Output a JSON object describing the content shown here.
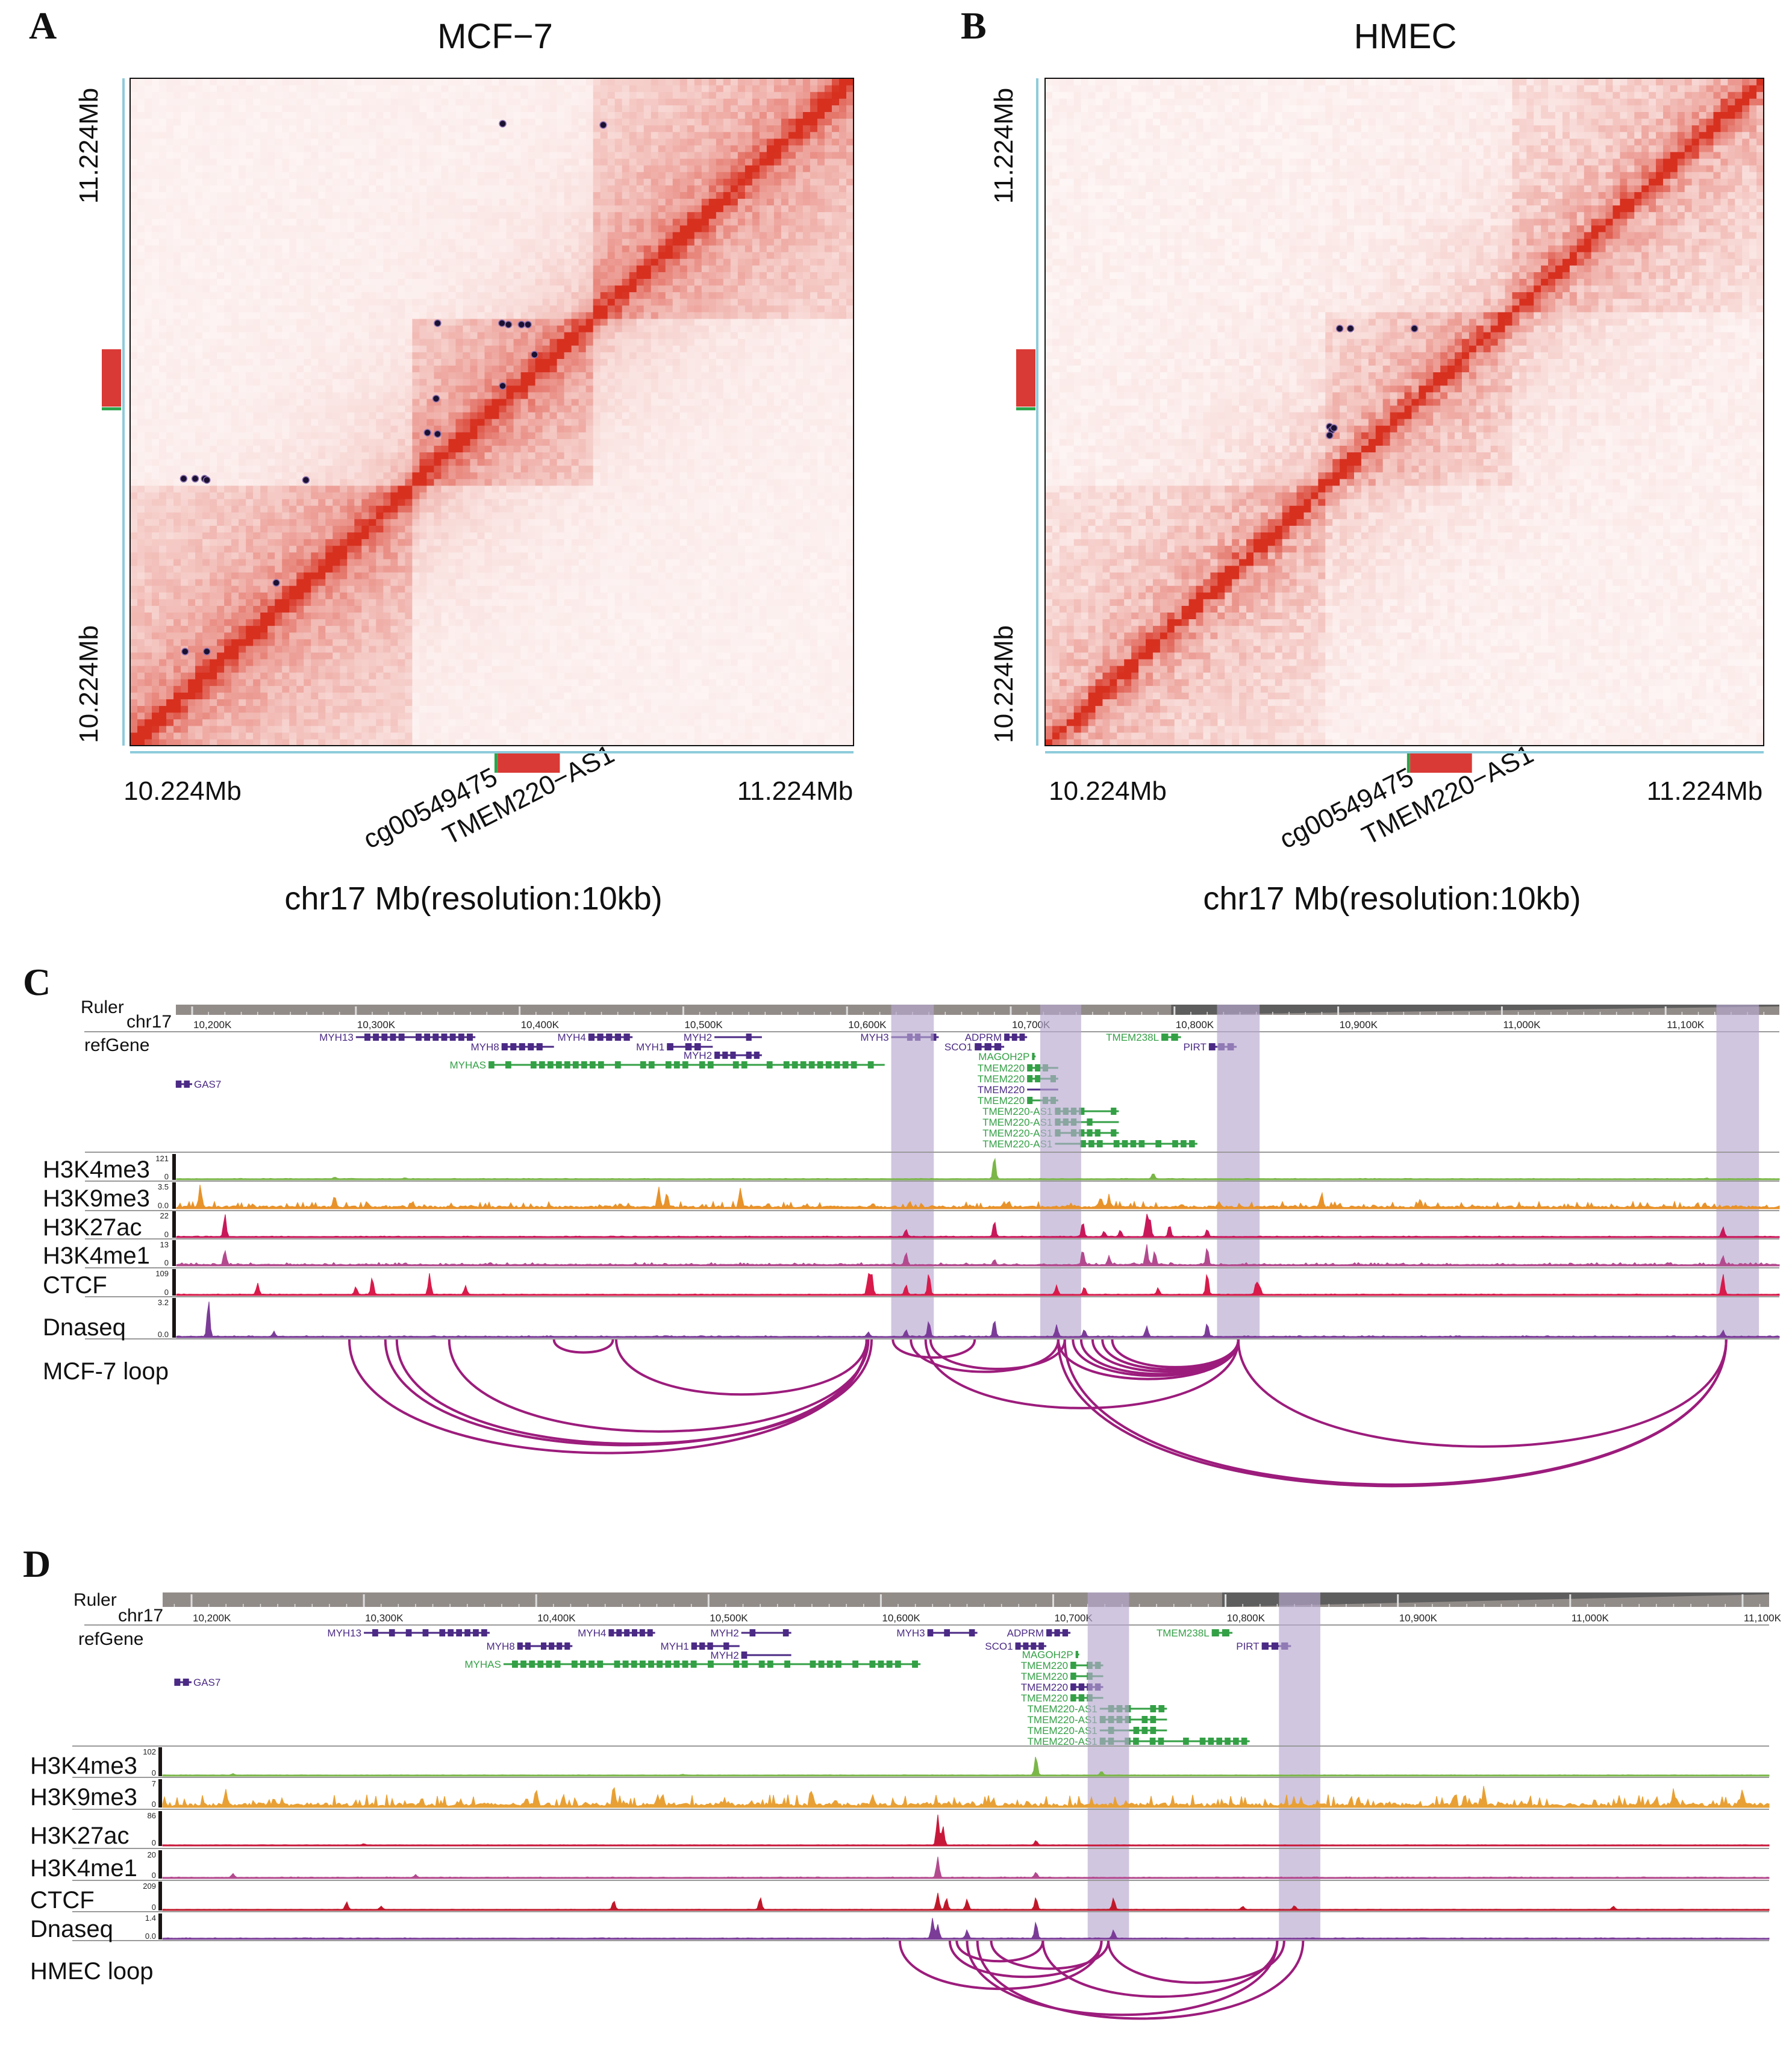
{
  "panels": {
    "A": {
      "label": "A",
      "title": "MCF−7",
      "xlabel": "chr17 Mb(resolution:10kb)",
      "start_label": "10.224Mb",
      "end_label": "11.224Mb",
      "y_top_label": "11.224Mb",
      "y_bottom_label": "10.224Mb",
      "marker_cpg": "cg00549475",
      "marker_gene": "TMEM220−AS1"
    },
    "B": {
      "label": "B",
      "title": "HMEC",
      "xlabel": "chr17 Mb(resolution:10kb)",
      "start_label": "10.224Mb",
      "end_label": "11.224Mb",
      "y_top_label": "11.224Mb",
      "y_bottom_label": "10.224Mb",
      "marker_cpg": "cg00549475",
      "marker_gene": "TMEM220−AS1"
    },
    "C": {
      "label": "C",
      "ruler": "Ruler",
      "chrom": "chr17",
      "refgene": "refGene",
      "loop_label": "MCF-7 loop"
    },
    "D": {
      "label": "D",
      "ruler": "Ruler",
      "chrom": "chr17",
      "refgene": "refGene",
      "loop_label": "HMEC loop"
    }
  },
  "colors": {
    "heat": "#d7301f",
    "dot": "#1a1030",
    "axis": "#8ecbdb",
    "marker": "#d93a35",
    "cpg": "#2aa34a",
    "loop": "#9c1c7c",
    "band": "#b7a8cf",
    "gene_purple": "#4b2a85",
    "gene_green": "#34a046"
  },
  "chart_data": [
    {
      "type": "heatmap",
      "panel": "A",
      "title": "MCF−7",
      "xlabel": "chr17 Mb(resolution:10kb)",
      "range_mb": [
        10.224,
        11.224
      ],
      "bins": 100,
      "resolution_kb": 10,
      "tad_boundaries_mb": [
        10.61,
        10.86
      ],
      "tad_boost": 0.22,
      "noise": 0.55,
      "marker_region_mb": [
        10.732,
        10.818
      ],
      "cpg_mb": 10.731,
      "loops_mb": [
        [
          10.739,
          11.156
        ],
        [
          10.878,
          11.154
        ],
        [
          10.649,
          10.857
        ],
        [
          10.738,
          10.857
        ],
        [
          10.747,
          10.855
        ],
        [
          10.765,
          10.855
        ],
        [
          10.774,
          10.855
        ],
        [
          10.783,
          10.81
        ],
        [
          10.647,
          10.744
        ],
        [
          10.739,
          10.763
        ],
        [
          10.635,
          10.693
        ],
        [
          10.649,
          10.691
        ],
        [
          10.298,
          10.624
        ],
        [
          10.314,
          10.624
        ],
        [
          10.327,
          10.624
        ],
        [
          10.33,
          10.622
        ],
        [
          10.467,
          10.622
        ],
        [
          10.426,
          10.468
        ],
        [
          10.3,
          10.365
        ],
        [
          10.33,
          10.365
        ]
      ]
    },
    {
      "type": "heatmap",
      "panel": "B",
      "title": "HMEC",
      "xlabel": "chr17 Mb(resolution:10kb)",
      "range_mb": [
        10.224,
        11.224
      ],
      "bins": 100,
      "resolution_kb": 10,
      "tad_boundaries_mb": [
        10.61,
        10.87
      ],
      "tad_boost": 0.12,
      "noise": 0.8,
      "marker_region_mb": [
        10.732,
        10.818
      ],
      "cpg_mb": 10.731,
      "loops_mb": [
        [
          10.634,
          10.849
        ],
        [
          10.649,
          10.849
        ],
        [
          10.738,
          10.849
        ],
        [
          10.62,
          10.702
        ],
        [
          10.623,
          10.697
        ],
        [
          10.62,
          10.689
        ],
        [
          10.626,
          10.7
        ]
      ]
    },
    {
      "type": "area",
      "panel": "C",
      "range_kb": [
        10190,
        11169
      ],
      "ruler_ticks": [
        "10,200K",
        "10,300K",
        "10,400K",
        "10,500K",
        "10,600K",
        "10,700K",
        "10,800K",
        "10,900K",
        "11,000K",
        "11,100K"
      ],
      "highlights_kb": [
        [
          10627,
          10653
        ],
        [
          10718,
          10743
        ],
        [
          10826,
          10852
        ],
        [
          11131,
          11157
        ]
      ],
      "tracks": [
        {
          "name": "H3K4me3",
          "max": "121",
          "min": "0",
          "color": "#7ab648",
          "noise": 2,
          "peaks": [
            [
              10690,
              120
            ],
            [
              10787,
              30
            ],
            [
              10287,
              8
            ],
            [
              10330,
              5
            ],
            [
              11125,
              4
            ]
          ]
        },
        {
          "name": "H3K9me3",
          "max": "3.5",
          "min": "0.0",
          "color": "#e8922a",
          "noise": 0.9,
          "peaks": [
            [
              10205,
              3.3
            ],
            [
              10485,
              3.0
            ],
            [
              10490,
              2.2
            ],
            [
              10535,
              2.8
            ],
            [
              10287,
              1.8
            ],
            [
              10890,
              2.2
            ],
            [
              10755,
              1.4
            ],
            [
              10760,
              1.5
            ],
            [
              10950,
              1.2
            ]
          ]
        },
        {
          "name": "H3K27ac",
          "max": "22",
          "min": "0",
          "color": "#c8185a",
          "noise": 0.5,
          "peaks": [
            [
              10220,
              21
            ],
            [
              10690,
              15
            ],
            [
              10744,
              14
            ],
            [
              10783,
              20
            ],
            [
              10785,
              16
            ],
            [
              10797,
              11
            ],
            [
              10636,
              7
            ],
            [
              10757,
              5
            ],
            [
              10767,
              6
            ],
            [
              10820,
              7
            ],
            [
              11135,
              9
            ]
          ]
        },
        {
          "name": "H3K4me1",
          "max": "13",
          "min": "0",
          "color": "#b34a8e",
          "noise": 1.3,
          "peaks": [
            [
              10220,
              8
            ],
            [
              10636,
              7
            ],
            [
              10744,
              8
            ],
            [
              10783,
              11
            ],
            [
              10788,
              7
            ],
            [
              10760,
              5
            ],
            [
              10820,
              10
            ],
            [
              11135,
              5
            ],
            [
              10690,
              3
            ]
          ]
        },
        {
          "name": "CTCF",
          "max": "109",
          "min": "0",
          "color": "#d81b4a",
          "noise": 2,
          "peaks": [
            [
              10240,
              50
            ],
            [
              10310,
              80
            ],
            [
              10300,
              35
            ],
            [
              10345,
              95
            ],
            [
              10367,
              40
            ],
            [
              10613,
              90
            ],
            [
              10615,
              100
            ],
            [
              10636,
              45
            ],
            [
              10650,
              100
            ],
            [
              10728,
              40
            ],
            [
              10745,
              35
            ],
            [
              10790,
              30
            ],
            [
              10820,
              100
            ],
            [
              10850,
              60
            ],
            [
              10852,
              40
            ],
            [
              11135,
              95
            ]
          ]
        },
        {
          "name": "Dnaseq",
          "max": "3.2",
          "min": "0.0",
          "color": "#7b3c98",
          "noise": 0.08,
          "peaks": [
            [
              10210,
              3.2
            ],
            [
              10250,
              0.4
            ],
            [
              10613,
              0.4
            ],
            [
              10636,
              0.6
            ],
            [
              10650,
              1.4
            ],
            [
              10690,
              1.5
            ],
            [
              10728,
              1.0
            ],
            [
              10745,
              0.6
            ],
            [
              10783,
              0.9
            ],
            [
              10820,
              1.2
            ],
            [
              11135,
              0.5
            ]
          ]
        }
      ],
      "loops_kb": [
        [
          10296,
          10612
        ],
        [
          10318,
          10612
        ],
        [
          10325,
          10615
        ],
        [
          10357,
          10613
        ],
        [
          10421,
          10457
        ],
        [
          10459,
          10612
        ],
        [
          10628,
          10678
        ],
        [
          10639,
          10729
        ],
        [
          10648,
          10839
        ],
        [
          10651,
          10733
        ],
        [
          10729,
          10839
        ],
        [
          10733,
          11137
        ],
        [
          10738,
          10839
        ],
        [
          10743,
          10839
        ],
        [
          10750,
          10839
        ],
        [
          10756,
          10839
        ],
        [
          10762,
          10839
        ],
        [
          10839,
          11137
        ],
        [
          10729,
          11137
        ]
      ]
    },
    {
      "type": "area",
      "panel": "D",
      "range_kb": [
        10183,
        11116
      ],
      "ruler_ticks": [
        "10,200K",
        "10,300K",
        "10,400K",
        "10,500K",
        "10,600K",
        "10,700K",
        "10,800K",
        "10,900K",
        "11,000K",
        "11,100K"
      ],
      "highlights_kb": [
        [
          10720,
          10744
        ],
        [
          10831,
          10855
        ]
      ],
      "tracks": [
        {
          "name": "H3K4me3",
          "max": "102",
          "min": "0",
          "color": "#7ab648",
          "noise": 1,
          "peaks": [
            [
              10690,
              75
            ],
            [
              10224,
              5
            ],
            [
              10728,
              15
            ],
            [
              10485,
              3
            ]
          ]
        },
        {
          "name": "H3K9me3",
          "max": "7",
          "min": "0",
          "color": "#e8a035",
          "noise": 3.2,
          "peaks": [
            [
              10220,
              4
            ],
            [
              10400,
              4.5
            ],
            [
              10445,
              5.5
            ],
            [
              10560,
              4
            ],
            [
              10950,
              5
            ],
            [
              11060,
              4.5
            ],
            [
              11100,
              4
            ]
          ]
        },
        {
          "name": "H3K27ac",
          "max": "86",
          "min": "0",
          "color": "#c8183a",
          "noise": 0.4,
          "peaks": [
            [
              10633,
              80
            ],
            [
              10636,
              50
            ],
            [
              10690,
              12
            ],
            [
              10300,
              3
            ]
          ]
        },
        {
          "name": "H3K4me1",
          "max": "20",
          "min": "0",
          "color": "#b34a8e",
          "noise": 0.4,
          "peaks": [
            [
              10633,
              16
            ],
            [
              10690,
              4
            ],
            [
              10224,
              3
            ],
            [
              10330,
              2
            ]
          ]
        },
        {
          "name": "CTCF",
          "max": "209",
          "min": "0",
          "color": "#c0182a",
          "noise": 1,
          "peaks": [
            [
              10290,
              60
            ],
            [
              10445,
              70
            ],
            [
              10310,
              25
            ],
            [
              10530,
              95
            ],
            [
              10633,
              130
            ],
            [
              10638,
              90
            ],
            [
              10650,
              80
            ],
            [
              10690,
              95
            ],
            [
              10735,
              90
            ],
            [
              10810,
              25
            ],
            [
              10840,
              30
            ],
            [
              11025,
              25
            ]
          ]
        },
        {
          "name": "Dnaseq",
          "max": "1.4",
          "min": "0.0",
          "color": "#7b3c98",
          "noise": 0.03,
          "peaks": [
            [
              10630,
              1.2
            ],
            [
              10633,
              0.8
            ],
            [
              10690,
              1.0
            ],
            [
              10650,
              0.5
            ],
            [
              10735,
              0.5
            ]
          ]
        }
      ],
      "loops_kb": [
        [
          10611,
          10728
        ],
        [
          10640,
          10728
        ],
        [
          10644,
          10694
        ],
        [
          10650,
          10830
        ],
        [
          10664,
          10732
        ],
        [
          10656,
          10845
        ],
        [
          10694,
          10830
        ],
        [
          10732,
          10834
        ]
      ]
    }
  ],
  "genes": [
    {
      "name": "MYH13",
      "start": 10300,
      "end": 10373,
      "color": "#4b2a85"
    },
    {
      "name": "MYH8",
      "start": 10389,
      "end": 10421,
      "color": "#4b2a85"
    },
    {
      "name": "MYH4",
      "start": 10442,
      "end": 10469,
      "color": "#4b2a85"
    },
    {
      "name": "MYH1",
      "start": 10490,
      "end": 10518,
      "color": "#4b2a85"
    },
    {
      "name": "MYH2",
      "start": 10519,
      "end": 10548,
      "color": "#4b2a85"
    },
    {
      "name": "MYH2",
      "start": 10519,
      "end": 10548,
      "color": "#4b2a85"
    },
    {
      "name": "MYHAS",
      "start": 10381,
      "end": 10623,
      "color": "#34a046"
    },
    {
      "name": "MYH3",
      "start": 10627,
      "end": 10656,
      "color": "#4b2a85"
    },
    {
      "name": "GAS7",
      "start": 10190,
      "end": 10200,
      "color": "#4b2a85"
    },
    {
      "name": "ADPRM",
      "start": 10696,
      "end": 10710,
      "color": "#4b2a85"
    },
    {
      "name": "SCO1",
      "start": 10678,
      "end": 10696,
      "color": "#4b2a85"
    },
    {
      "name": "MAGOH2P",
      "start": 10713,
      "end": 10714,
      "color": "#34a046"
    },
    {
      "name": "TMEM220",
      "start": 10710,
      "end": 10729,
      "color": "#34a046"
    },
    {
      "name": "TMEM220",
      "start": 10710,
      "end": 10729,
      "color": "#34a046"
    },
    {
      "name": "TMEM220",
      "start": 10710,
      "end": 10729,
      "color": "#4b2a85"
    },
    {
      "name": "TMEM220",
      "start": 10710,
      "end": 10729,
      "color": "#34a046"
    },
    {
      "name": "TMEM220-AS1",
      "start": 10727,
      "end": 10766,
      "color": "#34a046"
    },
    {
      "name": "TMEM220-AS1",
      "start": 10727,
      "end": 10766,
      "color": "#34a046"
    },
    {
      "name": "TMEM220-AS1",
      "start": 10727,
      "end": 10766,
      "color": "#34a046"
    },
    {
      "name": "TMEM220-AS1",
      "start": 10727,
      "end": 10814,
      "color": "#34a046"
    },
    {
      "name": "TMEM238L",
      "start": 10792,
      "end": 10804,
      "color": "#34a046"
    },
    {
      "name": "PIRT",
      "start": 10821,
      "end": 10838,
      "color": "#4b2a85"
    }
  ]
}
